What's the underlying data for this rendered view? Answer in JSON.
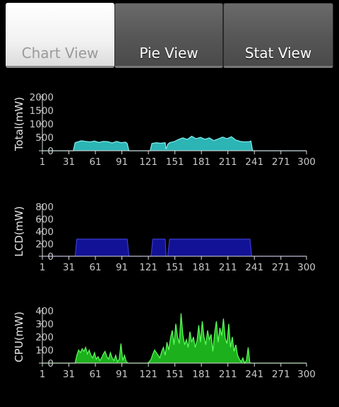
{
  "tabs": [
    {
      "label": "Chart View",
      "active": true
    },
    {
      "label": "Pie View",
      "active": false
    },
    {
      "label": "Stat View",
      "active": false
    }
  ],
  "colors": {
    "total": "#31c3c3",
    "lcd": "#121296",
    "cpu": "#1fbf1f"
  },
  "chart_data": [
    {
      "type": "area",
      "ylabel": "Total(mW)",
      "xlim": [
        1,
        300
      ],
      "ylim": [
        0,
        2000
      ],
      "xticks": [
        "1",
        "31",
        "61",
        "91",
        "121",
        "151",
        "181",
        "211",
        "241",
        "271",
        "300"
      ],
      "yticks": [
        "0",
        "500",
        "1000",
        "1500",
        "2000"
      ],
      "x": [
        1,
        36,
        38,
        41,
        45,
        50,
        55,
        60,
        65,
        70,
        75,
        80,
        85,
        90,
        95,
        97,
        99,
        120,
        123,
        125,
        130,
        135,
        140,
        141,
        143,
        145,
        150,
        155,
        160,
        165,
        170,
        175,
        180,
        185,
        190,
        195,
        200,
        205,
        210,
        215,
        220,
        225,
        230,
        235,
        237,
        239,
        300
      ],
      "values": [
        0,
        0,
        300,
        330,
        370,
        350,
        330,
        360,
        310,
        350,
        340,
        290,
        350,
        300,
        320,
        270,
        0,
        0,
        0,
        270,
        300,
        280,
        300,
        60,
        240,
        300,
        340,
        420,
        480,
        420,
        540,
        450,
        500,
        430,
        480,
        380,
        440,
        510,
        450,
        520,
        400,
        350,
        330,
        340,
        360,
        0,
        0
      ]
    },
    {
      "type": "area",
      "ylabel": "LCD(mW)",
      "xlim": [
        1,
        300
      ],
      "ylim": [
        0,
        800
      ],
      "xticks": [
        "1",
        "31",
        "61",
        "91",
        "121",
        "151",
        "181",
        "211",
        "241",
        "271",
        "300"
      ],
      "yticks": [
        "0",
        "200",
        "400",
        "600",
        "800"
      ],
      "x": [
        1,
        38,
        40,
        97,
        99,
        124,
        126,
        140,
        141,
        143,
        145,
        236,
        238,
        300
      ],
      "values": [
        0,
        0,
        275,
        275,
        0,
        0,
        275,
        275,
        0,
        0,
        275,
        275,
        0,
        0
      ]
    },
    {
      "type": "area",
      "ylabel": "CPU(mW)",
      "xlim": [
        1,
        300
      ],
      "ylim": [
        0,
        400
      ],
      "xticks": [
        "1",
        "31",
        "61",
        "91",
        "121",
        "151",
        "181",
        "211",
        "241",
        "271",
        "300"
      ],
      "yticks": [
        "0",
        "100",
        "200",
        "300",
        "400"
      ],
      "x": [
        1,
        38,
        40,
        42,
        44,
        46,
        48,
        50,
        52,
        54,
        56,
        58,
        60,
        62,
        64,
        66,
        68,
        70,
        72,
        74,
        76,
        78,
        80,
        82,
        84,
        86,
        88,
        90,
        92,
        94,
        96,
        98,
        100,
        120,
        122,
        124,
        126,
        128,
        130,
        132,
        134,
        136,
        138,
        140,
        142,
        144,
        146,
        148,
        150,
        152,
        154,
        156,
        158,
        160,
        162,
        164,
        166,
        168,
        170,
        172,
        174,
        176,
        178,
        180,
        182,
        184,
        186,
        188,
        190,
        192,
        194,
        196,
        198,
        200,
        202,
        204,
        206,
        208,
        210,
        212,
        214,
        216,
        218,
        220,
        222,
        224,
        226,
        228,
        230,
        232,
        234,
        236,
        238,
        240,
        300
      ],
      "values": [
        0,
        0,
        60,
        100,
        80,
        110,
        90,
        120,
        70,
        100,
        60,
        40,
        80,
        30,
        50,
        20,
        40,
        70,
        90,
        50,
        30,
        80,
        40,
        20,
        60,
        10,
        30,
        150,
        20,
        60,
        10,
        0,
        0,
        0,
        10,
        30,
        70,
        100,
        80,
        60,
        40,
        90,
        120,
        60,
        160,
        100,
        190,
        250,
        140,
        300,
        200,
        150,
        380,
        220,
        140,
        180,
        120,
        240,
        160,
        200,
        120,
        170,
        290,
        160,
        320,
        200,
        140,
        250,
        180,
        220,
        90,
        230,
        320,
        160,
        270,
        210,
        340,
        190,
        150,
        300,
        120,
        200,
        90,
        140,
        60,
        30,
        10,
        40,
        0,
        20,
        120,
        0,
        0,
        0,
        0
      ]
    }
  ]
}
